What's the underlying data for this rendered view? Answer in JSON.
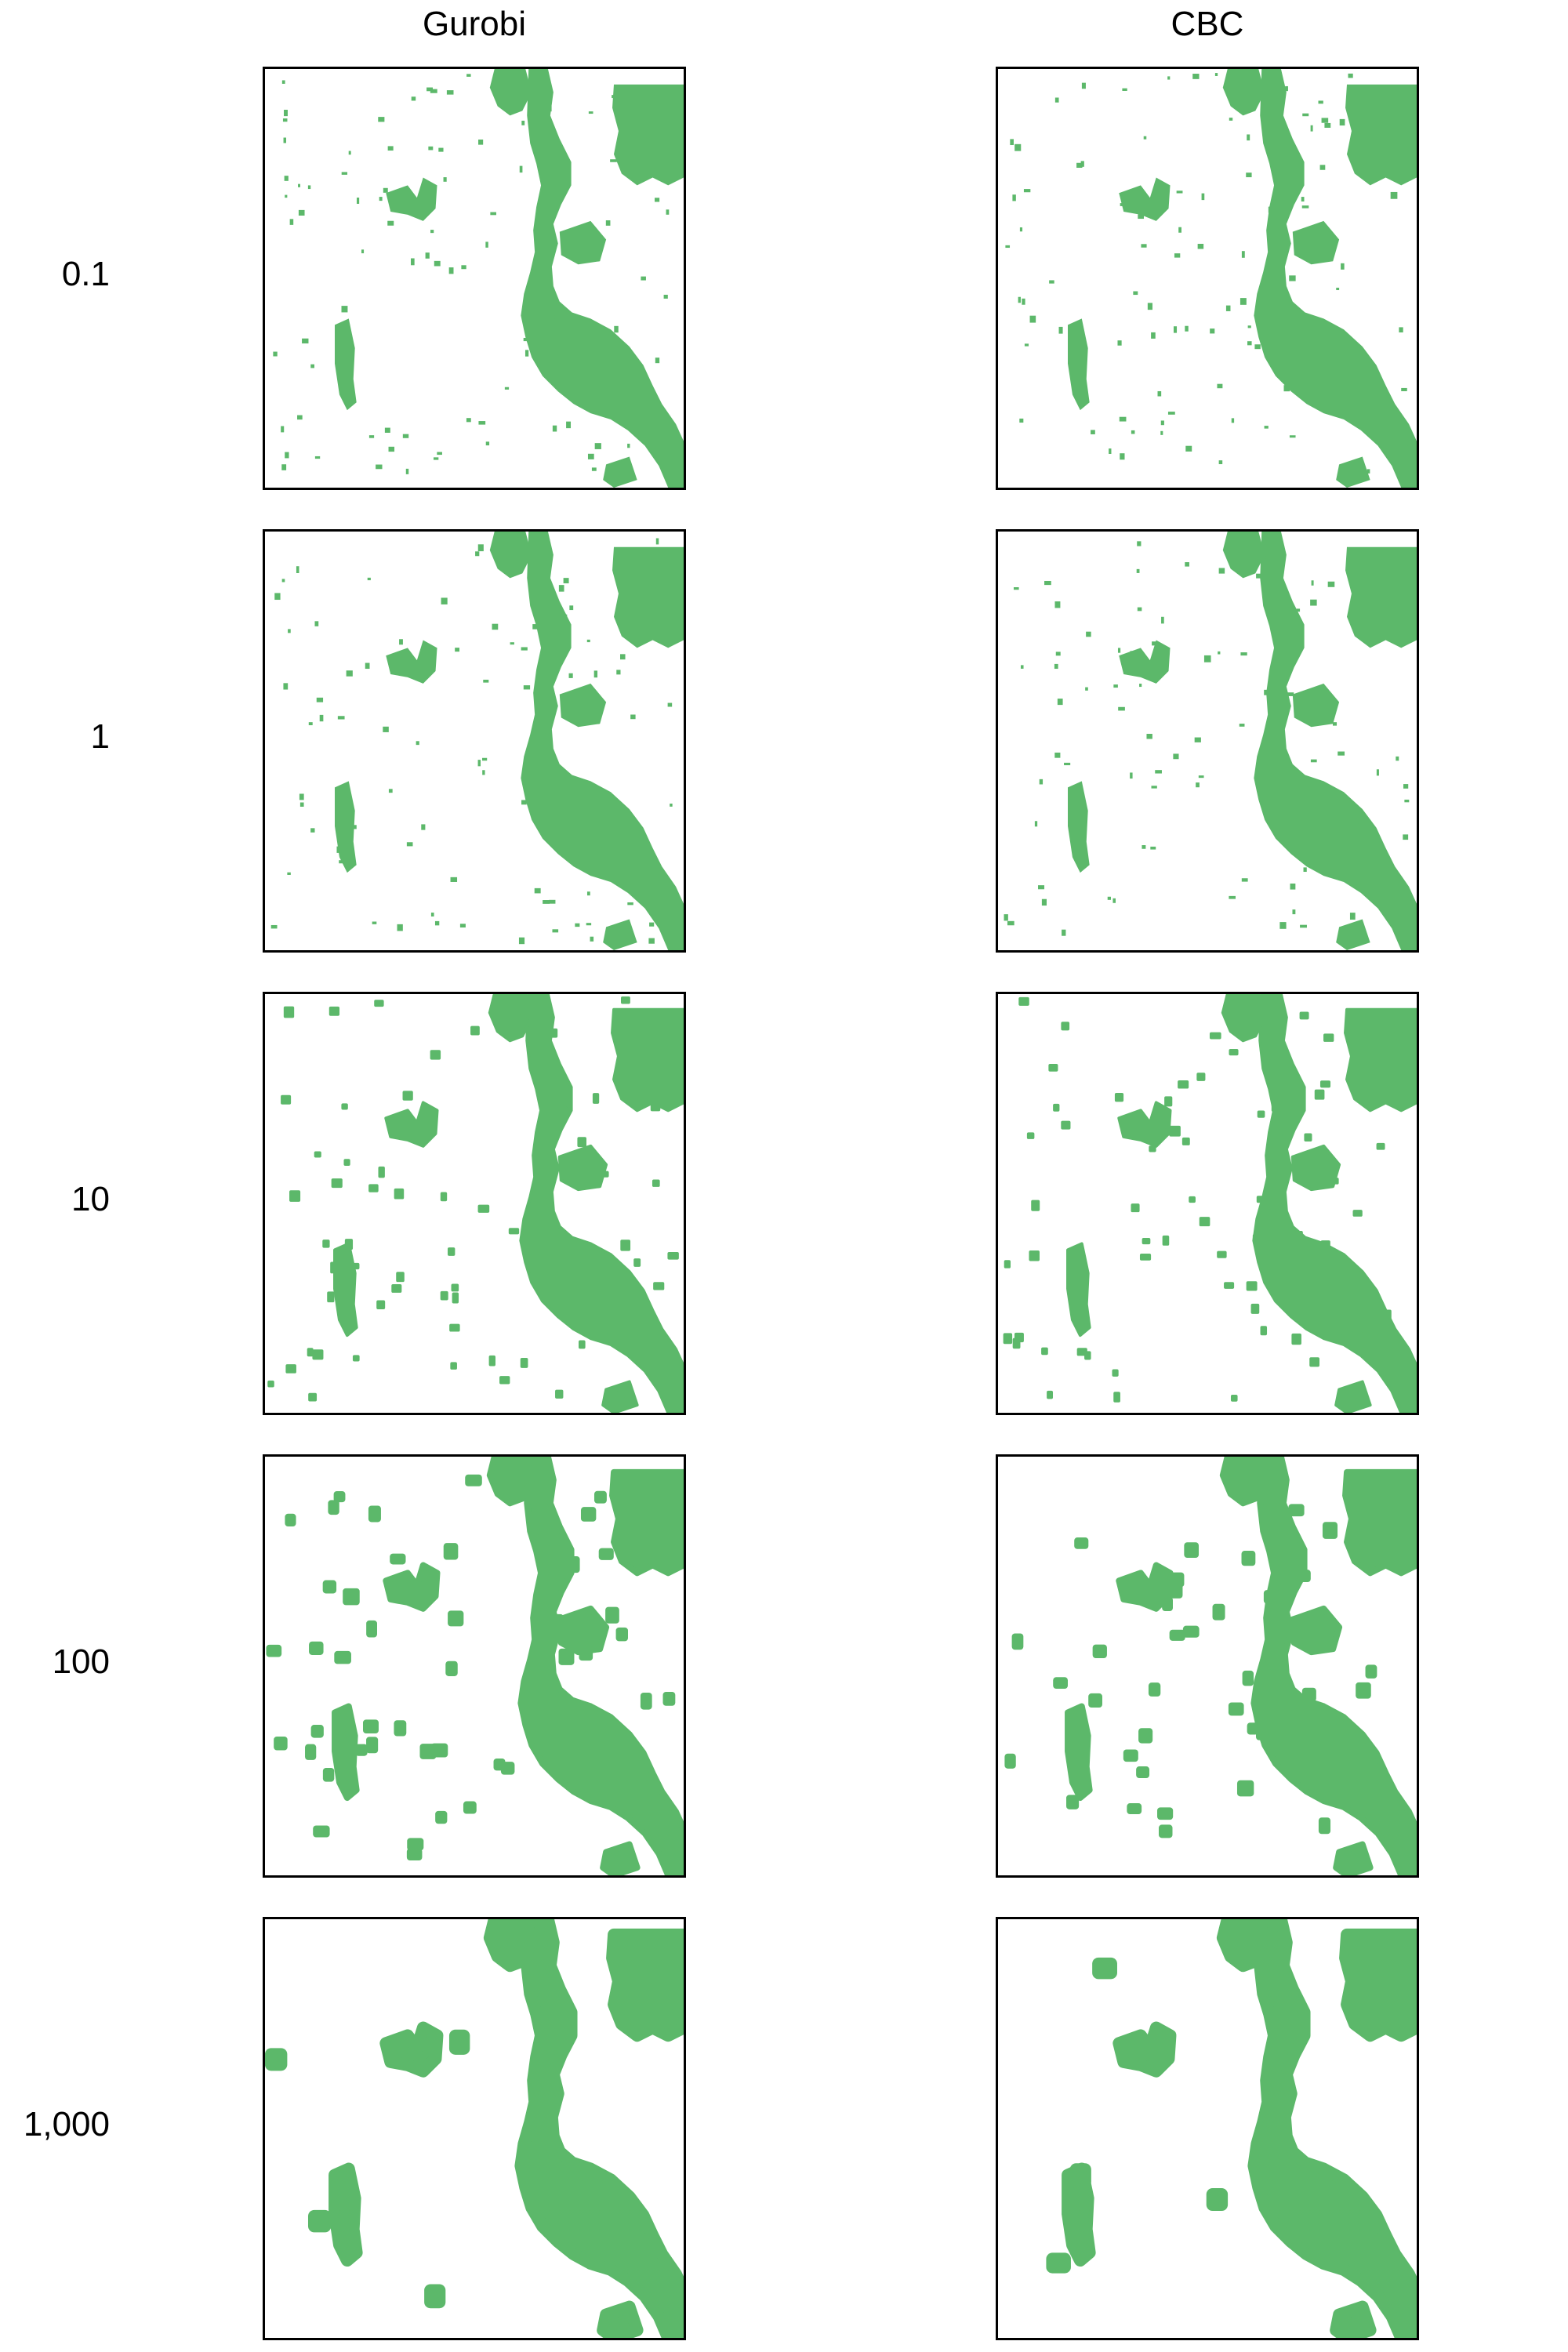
{
  "figure": {
    "columns": [
      {
        "key": "gurobi",
        "label": "Gurobi"
      },
      {
        "key": "cbc",
        "label": "CBC"
      }
    ],
    "rows": [
      {
        "label": "0.1",
        "smoothing": 0
      },
      {
        "label": "1",
        "smoothing": 0
      },
      {
        "label": "10",
        "smoothing": 1
      },
      {
        "label": "100",
        "smoothing": 2
      },
      {
        "label": "1,000",
        "smoothing": 4
      }
    ],
    "fill_color": "#5cb86a",
    "background_color": "#ffffff",
    "border_color": "#000000"
  }
}
